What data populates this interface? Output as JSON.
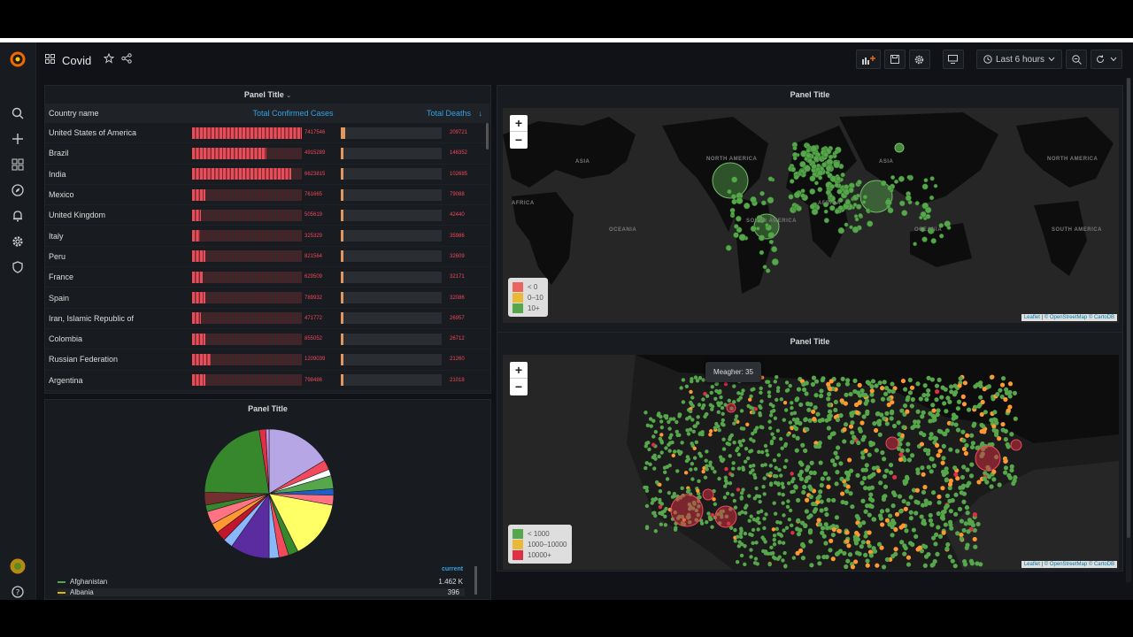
{
  "navbar": {
    "dashboard_title": "Covid",
    "time_range": "Last 6 hours"
  },
  "table_panel": {
    "title": "Panel Title",
    "columns": [
      "Country name",
      "Total Confirmed Cases",
      "Total Deaths"
    ],
    "rows": [
      {
        "country": "United States of America",
        "cases": "7417546",
        "cases_frac": 1.0,
        "deaths": "209721",
        "deaths_frac": 0.04
      },
      {
        "country": "Brazil",
        "cases": "4915289",
        "cases_frac": 0.68,
        "deaths": "146352",
        "deaths_frac": 0.03
      },
      {
        "country": "India",
        "cases": "6623815",
        "cases_frac": 0.9,
        "deaths": "102685",
        "deaths_frac": 0.02
      },
      {
        "country": "Mexico",
        "cases": "761665",
        "cases_frac": 0.12,
        "deaths": "79088",
        "deaths_frac": 0.015
      },
      {
        "country": "United Kingdom",
        "cases": "505619",
        "cases_frac": 0.08,
        "deaths": "42440",
        "deaths_frac": 0.01
      },
      {
        "country": "Italy",
        "cases": "325329",
        "cases_frac": 0.07,
        "deaths": "35986",
        "deaths_frac": 0.01
      },
      {
        "country": "Peru",
        "cases": "821564",
        "cases_frac": 0.12,
        "deaths": "32609",
        "deaths_frac": 0.01
      },
      {
        "country": "France",
        "cases": "629509",
        "cases_frac": 0.1,
        "deaths": "32171",
        "deaths_frac": 0.01
      },
      {
        "country": "Spain",
        "cases": "789932",
        "cases_frac": 0.12,
        "deaths": "32086",
        "deaths_frac": 0.01
      },
      {
        "country": "Iran, Islamic Republic of",
        "cases": "471772",
        "cases_frac": 0.08,
        "deaths": "26957",
        "deaths_frac": 0.008
      },
      {
        "country": "Colombia",
        "cases": "855052",
        "cases_frac": 0.12,
        "deaths": "26712",
        "deaths_frac": 0.008
      },
      {
        "country": "Russian Federation",
        "cases": "1209039",
        "cases_frac": 0.17,
        "deaths": "21260",
        "deaths_frac": 0.008
      },
      {
        "country": "Argentina",
        "cases": "798486",
        "cases_frac": 0.12,
        "deaths": "21018",
        "deaths_frac": 0.008
      }
    ]
  },
  "world_map": {
    "title": "Panel Title",
    "legend": [
      "< 0",
      "0–10",
      "10+"
    ],
    "labels": [
      "ASIA",
      "NORTH AMERICA",
      "AFRICA",
      "SOUTH AMERICA",
      "OCEANIA",
      "ASIA",
      "NORTH AMERICA",
      "OCEANIA",
      "SOUTH AMERICA",
      "AFRICA"
    ],
    "attribution": {
      "leaflet": "Leaflet",
      "osm": "© OpenStreetMap",
      "carto": "© CartoDB"
    }
  },
  "us_map": {
    "title": "Panel Title",
    "tooltip": "Meagher: 35",
    "legend": [
      "< 1000",
      "1000–10000",
      "10000+"
    ],
    "attribution": {
      "leaflet": "Leaflet",
      "osm": "© OpenStreetMap",
      "carto": "© CartoDB"
    }
  },
  "pie_panel": {
    "title": "Panel Title",
    "legend_header": "current",
    "legend": [
      {
        "name": "Afghanistan",
        "value": "1.462 K",
        "color": "#56a64b"
      },
      {
        "name": "Albania",
        "value": "396",
        "color": "#e0b400"
      }
    ]
  },
  "chart_data": {
    "type": "pie",
    "title": "Panel Title",
    "slices": [
      {
        "value": 20,
        "color": "#b7a6e6"
      },
      {
        "value": 3,
        "color": "#f2495c"
      },
      {
        "value": 2,
        "color": "#ffffff"
      },
      {
        "value": 4,
        "color": "#56a64b"
      },
      {
        "value": 2,
        "color": "#1f60c4"
      },
      {
        "value": 3,
        "color": "#ff7383"
      },
      {
        "value": 18,
        "color": "#ffff66"
      },
      {
        "value": 3,
        "color": "#37872d"
      },
      {
        "value": 3,
        "color": "#f2495c"
      },
      {
        "value": 3,
        "color": "#8ab8ff"
      },
      {
        "value": 12,
        "color": "#5a2ca0"
      },
      {
        "value": 3,
        "color": "#8ab8ff"
      },
      {
        "value": 3,
        "color": "#c4162a"
      },
      {
        "value": 3,
        "color": "#ff9830"
      },
      {
        "value": 4,
        "color": "#ff7383"
      },
      {
        "value": 2,
        "color": "#37872d"
      },
      {
        "value": 4,
        "color": "#73302f"
      },
      {
        "value": 27,
        "color": "#37872d"
      },
      {
        "value": 2,
        "color": "#e02f44"
      },
      {
        "value": 1,
        "color": "#ca95e5"
      }
    ]
  }
}
